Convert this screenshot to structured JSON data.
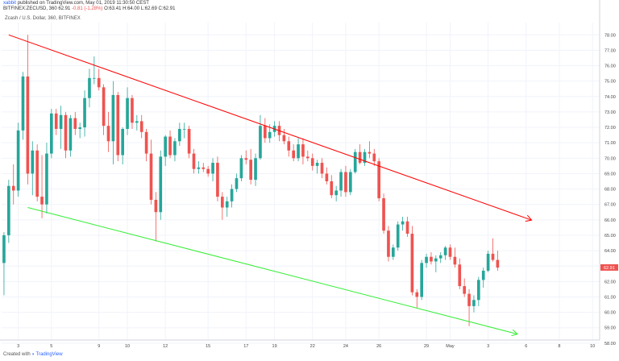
{
  "header": {
    "line1_prefix": "xabbit",
    "line1_rest": "published on TradingView.com, May 01, 2019 11:30:50 CEST",
    "symbol": "BITFINEX:ZECUSD, 360",
    "price": "62.91",
    "change": "-0.81 (-1.28%)",
    "ohlc": "O:63.41 H:64.00 L:62.69 C:62.91"
  },
  "chart_title": "Zcash / U.S. Dollar, 360, BITFINEX",
  "footer": {
    "prefix": "Created with",
    "brand": "TradingView"
  },
  "colors": {
    "up": "#26a69a",
    "down": "#ef5350",
    "upper_trendline": "#ff0000",
    "lower_trendline": "#33ee33",
    "last_price_tag": "#ef5350"
  },
  "chart_data": {
    "type": "candlestick",
    "title": "Zcash / U.S. Dollar, 360, BITFINEX",
    "ylim": [
      58.2,
      78.8
    ],
    "y_ticks": [
      "78.00",
      "77.00",
      "76.00",
      "75.00",
      "74.00",
      "73.00",
      "72.00",
      "71.00",
      "70.00",
      "69.00",
      "68.00",
      "67.00",
      "66.00",
      "65.00",
      "64.00",
      "63.00",
      "62.00",
      "61.00",
      "60.00",
      "59.00",
      "58.00"
    ],
    "x_ticks": [
      "3",
      "5",
      "9",
      "10",
      "12",
      "15",
      "17",
      "19",
      "22",
      "24",
      "26",
      "29",
      "May",
      "3",
      "6",
      "8",
      "10"
    ],
    "x_tick_index": [
      3,
      10,
      20,
      26,
      34,
      43,
      51,
      57,
      65,
      72,
      79,
      89,
      94,
      102,
      110,
      117,
      124
    ],
    "last_price": "62.91",
    "grid": true,
    "candles": [
      [
        63.2,
        65.2,
        61.1,
        65.0
      ],
      [
        65.0,
        68.6,
        64.5,
        68.2
      ],
      [
        68.2,
        69.6,
        67.0,
        67.9
      ],
      [
        67.9,
        72.3,
        67.5,
        71.8
      ],
      [
        71.8,
        75.6,
        71.2,
        75.3
      ],
      [
        75.3,
        78.0,
        68.3,
        69.0
      ],
      [
        69.0,
        71.1,
        67.6,
        70.5
      ],
      [
        70.5,
        70.9,
        67.2,
        67.5
      ],
      [
        67.5,
        70.2,
        66.1,
        67.0
      ],
      [
        67.0,
        71.0,
        66.4,
        70.3
      ],
      [
        70.3,
        73.2,
        70.0,
        72.9
      ],
      [
        72.9,
        73.2,
        71.5,
        71.9
      ],
      [
        71.9,
        73.4,
        70.6,
        72.8
      ],
      [
        72.8,
        73.0,
        70.0,
        70.5
      ],
      [
        70.5,
        72.8,
        70.1,
        72.6
      ],
      [
        72.6,
        73.0,
        71.5,
        71.9
      ],
      [
        71.9,
        72.3,
        71.3,
        72.0
      ],
      [
        72.0,
        74.4,
        71.4,
        73.9
      ],
      [
        73.9,
        75.8,
        73.3,
        75.2
      ],
      [
        75.2,
        76.6,
        74.8,
        75.2
      ],
      [
        75.2,
        75.8,
        74.4,
        74.6
      ],
      [
        74.6,
        74.8,
        71.5,
        72.1
      ],
      [
        72.1,
        73.0,
        70.4,
        71.1
      ],
      [
        71.1,
        75.0,
        69.6,
        74.1
      ],
      [
        74.1,
        74.3,
        69.8,
        70.2
      ],
      [
        70.2,
        72.0,
        69.6,
        71.9
      ],
      [
        71.9,
        74.6,
        71.5,
        73.9
      ],
      [
        73.9,
        74.1,
        71.9,
        72.3
      ],
      [
        72.3,
        72.8,
        71.8,
        72.4
      ],
      [
        72.4,
        72.8,
        71.3,
        71.7
      ],
      [
        71.7,
        71.9,
        69.8,
        70.3
      ],
      [
        70.3,
        71.2,
        67.0,
        67.3
      ],
      [
        67.3,
        67.8,
        64.6,
        66.5
      ],
      [
        66.5,
        70.5,
        66.0,
        70.1
      ],
      [
        70.1,
        71.5,
        69.5,
        71.4
      ],
      [
        71.4,
        71.8,
        70.0,
        70.2
      ],
      [
        70.2,
        71.3,
        69.8,
        71.1
      ],
      [
        71.1,
        72.3,
        70.8,
        71.9
      ],
      [
        71.9,
        72.3,
        71.3,
        71.9
      ],
      [
        71.9,
        72.1,
        70.0,
        70.3
      ],
      [
        70.3,
        70.6,
        69.0,
        69.3
      ],
      [
        69.3,
        69.8,
        69.0,
        69.4
      ],
      [
        69.4,
        69.7,
        69.1,
        69.3
      ],
      [
        69.3,
        69.5,
        68.8,
        69.0
      ],
      [
        69.0,
        70.0,
        68.5,
        69.7
      ],
      [
        69.7,
        70.1,
        67.2,
        67.5
      ],
      [
        67.5,
        67.8,
        66.0,
        66.8
      ],
      [
        66.8,
        67.5,
        66.2,
        67.2
      ],
      [
        67.2,
        68.3,
        66.8,
        68.0
      ],
      [
        68.0,
        69.0,
        67.8,
        68.7
      ],
      [
        68.7,
        70.2,
        68.5,
        70.0
      ],
      [
        70.0,
        70.5,
        69.6,
        69.9
      ],
      [
        69.9,
        70.6,
        68.3,
        68.6
      ],
      [
        68.6,
        70.3,
        68.2,
        70.0
      ],
      [
        70.0,
        72.8,
        69.9,
        72.1
      ],
      [
        72.1,
        72.6,
        71.0,
        71.3
      ],
      [
        71.3,
        72.2,
        71.0,
        71.7
      ],
      [
        71.7,
        72.4,
        71.4,
        72.1
      ],
      [
        72.1,
        72.4,
        71.1,
        71.5
      ],
      [
        71.5,
        71.9,
        70.9,
        71.1
      ],
      [
        71.1,
        71.4,
        70.1,
        70.5
      ],
      [
        70.5,
        70.9,
        69.8,
        70.0
      ],
      [
        70.0,
        71.3,
        69.8,
        70.9
      ],
      [
        70.9,
        71.3,
        69.6,
        70.1
      ],
      [
        70.1,
        70.5,
        69.8,
        70.0
      ],
      [
        70.0,
        70.3,
        69.2,
        69.5
      ],
      [
        69.5,
        69.9,
        69.0,
        69.7
      ],
      [
        69.7,
        70.0,
        68.7,
        69.0
      ],
      [
        69.0,
        69.4,
        68.3,
        68.5
      ],
      [
        68.5,
        68.9,
        67.4,
        67.6
      ],
      [
        67.6,
        68.2,
        67.2,
        67.9
      ],
      [
        67.9,
        69.3,
        67.5,
        69.1
      ],
      [
        69.1,
        69.5,
        67.5,
        67.8
      ],
      [
        67.8,
        69.3,
        67.6,
        69.1
      ],
      [
        69.1,
        70.6,
        69.0,
        70.4
      ],
      [
        70.4,
        70.9,
        69.6,
        69.7
      ],
      [
        69.7,
        70.6,
        69.5,
        70.4
      ],
      [
        70.4,
        71.1,
        70.0,
        70.3
      ],
      [
        70.3,
        70.6,
        69.5,
        69.8
      ],
      [
        69.8,
        70.0,
        67.2,
        67.4
      ],
      [
        67.4,
        67.7,
        65.1,
        65.3
      ],
      [
        65.3,
        65.6,
        63.3,
        63.6
      ],
      [
        63.6,
        64.4,
        63.4,
        64.2
      ],
      [
        64.2,
        65.9,
        64.0,
        65.7
      ],
      [
        65.7,
        66.2,
        65.3,
        65.9
      ],
      [
        65.9,
        66.2,
        64.9,
        65.1
      ],
      [
        65.1,
        65.6,
        61.1,
        61.3
      ],
      [
        61.3,
        61.5,
        60.3,
        61.0
      ],
      [
        61.0,
        63.4,
        60.8,
        63.2
      ],
      [
        63.2,
        63.8,
        62.9,
        63.6
      ],
      [
        63.6,
        63.9,
        63.1,
        63.3
      ],
      [
        63.3,
        63.7,
        62.6,
        63.5
      ],
      [
        63.5,
        63.9,
        63.2,
        63.7
      ],
      [
        63.7,
        64.3,
        63.4,
        64.2
      ],
      [
        64.2,
        64.4,
        63.4,
        63.6
      ],
      [
        63.6,
        64.2,
        62.9,
        63.1
      ],
      [
        63.1,
        63.5,
        61.5,
        61.7
      ],
      [
        61.7,
        62.2,
        61.0,
        61.2
      ],
      [
        61.2,
        61.5,
        59.1,
        60.4
      ],
      [
        60.4,
        61.1,
        60.0,
        60.8
      ],
      [
        60.8,
        62.3,
        60.4,
        62.1
      ],
      [
        62.1,
        62.9,
        61.6,
        62.7
      ],
      [
        62.7,
        64.0,
        62.6,
        63.8
      ],
      [
        63.8,
        64.8,
        63.3,
        63.4
      ],
      [
        63.4,
        64.0,
        62.7,
        62.9
      ]
    ],
    "trendlines": [
      {
        "name": "upper",
        "start": [
          1,
          78.0
        ],
        "end": [
          111,
          66.0
        ]
      },
      {
        "name": "lower",
        "start": [
          5,
          66.8
        ],
        "end": [
          108,
          58.6
        ]
      }
    ]
  }
}
